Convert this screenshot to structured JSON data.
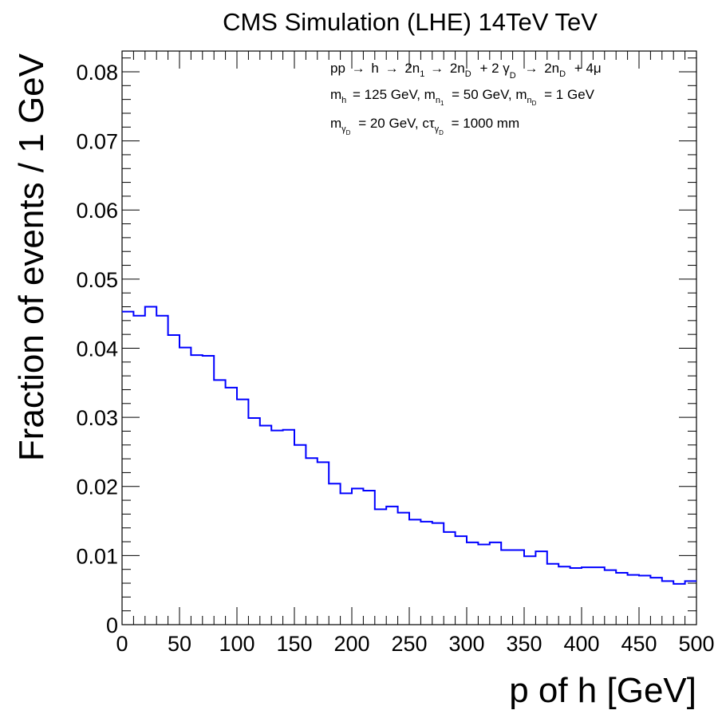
{
  "chart_data": {
    "type": "line",
    "title": "CMS Simulation (LHE) 14TeV TeV",
    "xlabel": "p of h [GeV]",
    "ylabel": "Fraction of events / 1 GeV",
    "xlim": [
      0,
      500
    ],
    "ylim": [
      0,
      0.083
    ],
    "x_ticks": [
      0,
      50,
      100,
      150,
      200,
      250,
      300,
      350,
      400,
      450,
      500
    ],
    "y_ticks": [
      0,
      0.01,
      0.02,
      0.03,
      0.04,
      0.05,
      0.06,
      0.07,
      0.08
    ],
    "x_tick_labels": [
      "0",
      "50",
      "100",
      "150",
      "200",
      "250",
      "300",
      "350",
      "400",
      "450",
      "500"
    ],
    "y_tick_labels": [
      "0",
      "0.01",
      "0.02",
      "0.03",
      "0.04",
      "0.05",
      "0.06",
      "0.07",
      "0.08"
    ],
    "grid": false,
    "legend": "none",
    "histogram": true,
    "bin_width": 10,
    "series": [
      {
        "color": "#0000ff",
        "values": [
          0.0453,
          0.0447,
          0.046,
          0.0447,
          0.0419,
          0.0401,
          0.039,
          0.0389,
          0.0354,
          0.0343,
          0.0326,
          0.0299,
          0.0288,
          0.0281,
          0.0282,
          0.026,
          0.0241,
          0.0235,
          0.0204,
          0.019,
          0.0197,
          0.0194,
          0.0167,
          0.0171,
          0.0162,
          0.0152,
          0.0149,
          0.0147,
          0.0134,
          0.0128,
          0.0119,
          0.0116,
          0.0119,
          0.0108,
          0.0108,
          0.0099,
          0.0106,
          0.0088,
          0.0084,
          0.0082,
          0.0083,
          0.0083,
          0.0079,
          0.0075,
          0.0072,
          0.0071,
          0.0068,
          0.0063,
          0.0059,
          0.0063
        ]
      }
    ],
    "annotations": {
      "line1": {
        "pre": "pp",
        "a1": "h",
        "a2": "2n",
        "a2sub": "1",
        "a3": "2n",
        "a3sub": "D",
        "plus1": "+ 2 γ",
        "plus1sub": "D",
        "a4": "2n",
        "a4sub": "D",
        "tail": "+ 4μ",
        "arrow": "→"
      },
      "line2": {
        "s1": "m",
        "s1sub": "h",
        "s2": "= 125 GeV, m",
        "s2sub": "n",
        "s2subsub": "1",
        "s3": "= 50 GeV, m",
        "s3sub": "n",
        "s3subsub": "D",
        "s4": "= 1 GeV"
      },
      "line3": {
        "s1": "m",
        "s1sub": "γ",
        "s1subsub": "D",
        "s2": "= 20 GeV, cτ",
        "s2sub": "γ",
        "s2subsub": "D",
        "s3": "= 1000 mm"
      }
    }
  }
}
